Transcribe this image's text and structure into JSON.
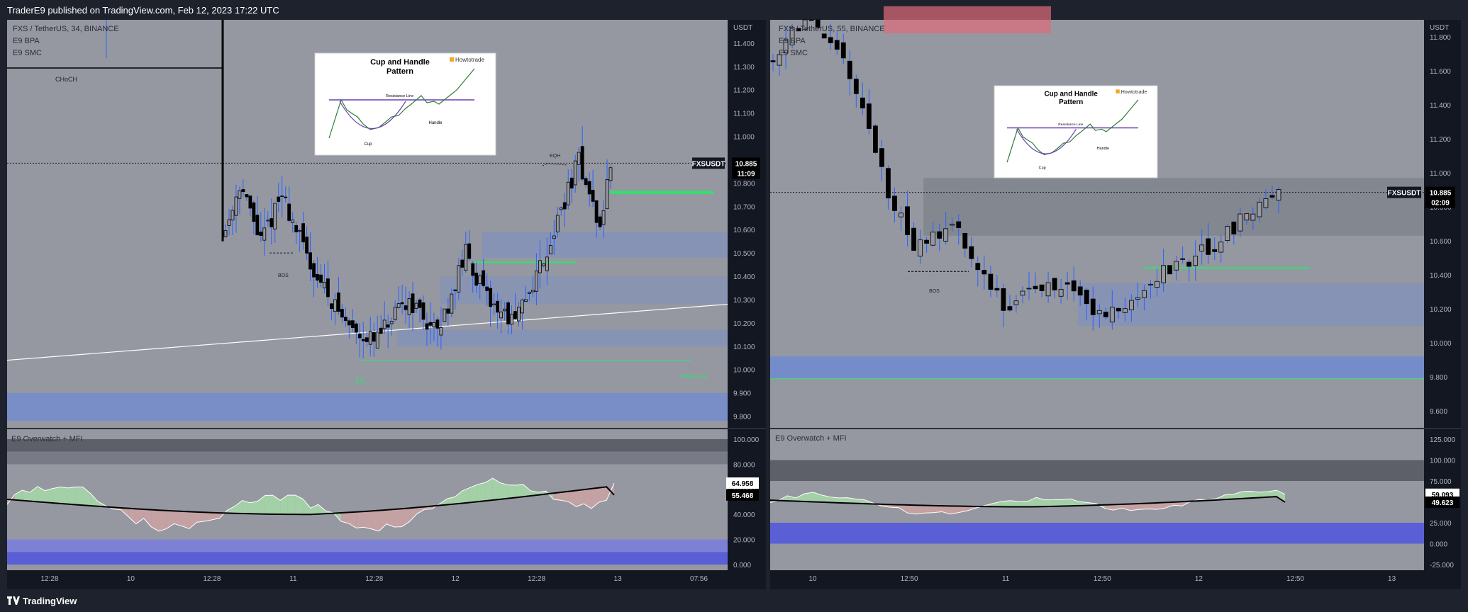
{
  "header": {
    "publisher": "TraderE9 published on TradingView.com, Feb 12, 2023 17:22 UTC"
  },
  "footer": {
    "brand": "TradingView"
  },
  "colors": {
    "panel_bg": "#9598a1",
    "up": "#000000",
    "wick": "#2962ff",
    "zone_blue": "#6d8ad6",
    "zone_red": "#e06c7a",
    "line_green": "#2ee56a",
    "mfi_up": "#a5d6a7",
    "mfi_down": "#c9a2a2"
  },
  "left": {
    "legend": [
      "FXS / TetherUS, 34, BINANCE",
      "E9 BPA",
      "E9 SMC"
    ],
    "currency": "USDT",
    "price_ticks": [
      "11.400",
      "11.300",
      "11.200",
      "11.100",
      "11.000",
      "10.900",
      "10.800",
      "10.700",
      "10.600",
      "10.500",
      "10.400",
      "10.300",
      "10.200",
      "10.100",
      "10.000",
      "9.900",
      "9.800"
    ],
    "symbol_tag": "FXSUSDT",
    "price_tag": "10.885",
    "countdown": "11:09",
    "annotations": {
      "choch": "CHoCH",
      "bos": "BOS",
      "eqh": "EQH",
      "ll": "LL",
      "weak_low": "Weak Low"
    },
    "indicator_title": "E9 Overwatch + MFI",
    "ind_ticks": [
      "100.000",
      "80.000",
      "60.000",
      "40.000",
      "20.000",
      "0.000"
    ],
    "ind_tag_1": "64.958",
    "ind_tag_2": "55.468",
    "time_ticks": [
      "12:28",
      "10",
      "12:28",
      "11",
      "12:28",
      "12",
      "12:28",
      "13",
      "07:56"
    ]
  },
  "right": {
    "legend": [
      "FXS / TetherUS, 55, BINANCE",
      "E9 BPA",
      "E9 SMC"
    ],
    "currency": "USDT",
    "price_ticks": [
      "11.800",
      "11.600",
      "11.400",
      "11.200",
      "11.000",
      "10.800",
      "10.600",
      "10.400",
      "10.200",
      "10.000",
      "9.800",
      "9.600"
    ],
    "symbol_tag": "FXSUSDT",
    "price_tag": "10.885",
    "countdown": "02:09",
    "annotations": {
      "bos": "BOS"
    },
    "indicator_title": "E9 Overwatch + MFI",
    "ind_ticks": [
      "125.000",
      "100.000",
      "75.000",
      "50.000",
      "25.000",
      "0.000",
      "-25.000"
    ],
    "ind_tag_1": "59.093",
    "ind_tag_2": "49.623",
    "time_ticks": [
      "10",
      "12:50",
      "11",
      "12:50",
      "12",
      "12:50",
      "13"
    ]
  },
  "inset": {
    "title": "Cup and Handle Pattern",
    "brand": "Howtotrade",
    "resistance": "Resistance Line",
    "handle": "Handle",
    "cup": "Cup"
  },
  "chart_data": {
    "type": "candlestick",
    "symbol": "FXS / TetherUS",
    "exchange": "BINANCE",
    "last_price": 10.885,
    "left_timeframe": "34",
    "right_timeframe": "55",
    "left_ylim": [
      9.75,
      11.5
    ],
    "right_ylim": [
      9.5,
      11.9
    ],
    "left_mfi": [
      64.958,
      55.468
    ],
    "right_mfi": [
      59.093,
      49.623
    ]
  }
}
